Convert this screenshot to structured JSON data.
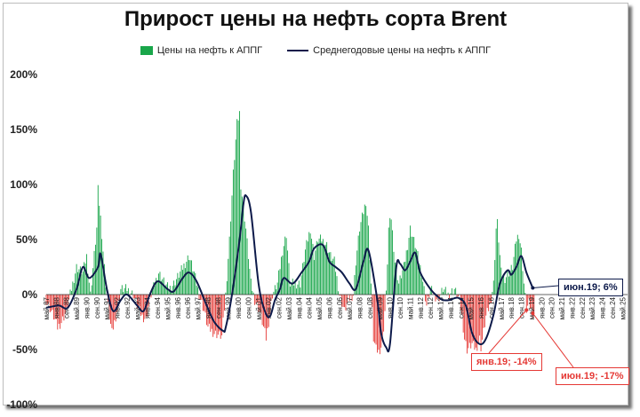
{
  "chart_data": {
    "type": "bar",
    "title": "Прирост цены на нефть сорта Brent",
    "legend": [
      "Цены на нефть к АППГ",
      "Среднегодовые цены на нефть к АППГ"
    ],
    "legend_placement": "top",
    "grid": false,
    "ylim": [
      -100,
      200
    ],
    "yticks": [
      "200%",
      "150%",
      "100%",
      "50%",
      "0%",
      "-50%",
      "-100%"
    ],
    "ytick_values": [
      200,
      150,
      100,
      50,
      0,
      -50,
      -100
    ],
    "xticks": [
      "май.87",
      "янв.88",
      "сен.88",
      "май.89",
      "янв.90",
      "сен.90",
      "май.91",
      "янв.92",
      "сен.92",
      "май.93",
      "янв.94",
      "сен.94",
      "май.95",
      "янв.96",
      "сен.96",
      "май.97",
      "янв.98",
      "сен.98",
      "май.99",
      "янв.00",
      "сен.00",
      "май.01",
      "янв.02",
      "сен.02",
      "май.03",
      "янв.04",
      "сен.04",
      "май.05",
      "янв.06",
      "сен.06",
      "май.07",
      "янв.08",
      "сен.08",
      "май.09",
      "янв.10",
      "сен.10",
      "май.11",
      "янв.12",
      "сен.12",
      "май.13",
      "янв.14",
      "сен.14",
      "май.15",
      "янв.16",
      "сен.16",
      "май.17",
      "янв.18",
      "сен.18",
      "май.19",
      "янв.20",
      "сен.20",
      "май.21",
      "янв.22",
      "сен.22",
      "май.23",
      "янв.24",
      "сен.24",
      "май.25"
    ],
    "x_range": [
      "май.87",
      "сен.25"
    ],
    "series": [
      {
        "name": "Цены на нефть к АППГ",
        "kind": "bar",
        "positive_color": "#19a64a",
        "negative_color": "#e53935",
        "knots": [
          [
            "май.87",
            -5
          ],
          [
            "ноя.87",
            -20
          ],
          [
            "фев.88",
            -30
          ],
          [
            "май.88",
            -25
          ],
          [
            "сен.88",
            -15
          ],
          [
            "янв.89",
            5
          ],
          [
            "май.89",
            25
          ],
          [
            "окт.89",
            20
          ],
          [
            "янв.90",
            35
          ],
          [
            "апр.90",
            0
          ],
          [
            "сен.90",
            60
          ],
          [
            "окт.90",
            95
          ],
          [
            "дек.90",
            70
          ],
          [
            "апр.91",
            10
          ],
          [
            "июл.91",
            -20
          ],
          [
            "сен.91",
            -35
          ],
          [
            "янв.92",
            -15
          ],
          [
            "апр.92",
            5
          ],
          [
            "сен.92",
            5
          ],
          [
            "фев.93",
            0
          ],
          [
            "май.93",
            -10
          ],
          [
            "сен.93",
            -20
          ],
          [
            "дек.93",
            -22
          ],
          [
            "апр.94",
            0
          ],
          [
            "окт.94",
            20
          ],
          [
            "мар.95",
            10
          ],
          [
            "июн.95",
            5
          ],
          [
            "окт.95",
            10
          ],
          [
            "мар.96",
            20
          ],
          [
            "окт.96",
            35
          ],
          [
            "фев.97",
            20
          ],
          [
            "июн.97",
            0
          ],
          [
            "окт.97",
            -15
          ],
          [
            "янв.98",
            -30
          ],
          [
            "июн.98",
            -35
          ],
          [
            "дек.98",
            -38
          ],
          [
            "мар.99",
            0
          ],
          [
            "июн.99",
            50
          ],
          [
            "сен.99",
            110
          ],
          [
            "дек.99",
            155
          ],
          [
            "фев.00",
            165
          ],
          [
            "мар.00",
            100
          ],
          [
            "июл.00",
            60
          ],
          [
            "ноя.00",
            10
          ],
          [
            "фев.01",
            -5
          ],
          [
            "июн.01",
            -15
          ],
          [
            "ноя.01",
            -40
          ],
          [
            "янв.02",
            -25
          ],
          [
            "апр.02",
            0
          ],
          [
            "авг.02",
            10
          ],
          [
            "дек.02",
            40
          ],
          [
            "мар.03",
            55
          ],
          [
            "июн.03",
            10
          ],
          [
            "ноя.03",
            10
          ],
          [
            "фев.04",
            10
          ],
          [
            "июн.04",
            40
          ],
          [
            "окт.04",
            60
          ],
          [
            "янв.05",
            35
          ],
          [
            "апр.05",
            50
          ],
          [
            "июл.05",
            50
          ],
          [
            "ноя.05",
            45
          ],
          [
            "фев.06",
            35
          ],
          [
            "май.06",
            30
          ],
          [
            "сен.06",
            0
          ],
          [
            "янв.07",
            -15
          ],
          [
            "апр.07",
            -5
          ],
          [
            "авг.07",
            0
          ],
          [
            "окт.07",
            30
          ],
          [
            "янв.08",
            60
          ],
          [
            "апр.08",
            75
          ],
          [
            "июн.08",
            85
          ],
          [
            "авг.08",
            60
          ],
          [
            "окт.08",
            10
          ],
          [
            "дек.08",
            -40
          ],
          [
            "фев.09",
            -50
          ],
          [
            "апр.09",
            -52
          ],
          [
            "июл.09",
            -45
          ],
          [
            "окт.09",
            0
          ],
          [
            "дек.09",
            60
          ],
          [
            "фев.10",
            70
          ],
          [
            "май.10",
            30
          ],
          [
            "авг.10",
            10
          ],
          [
            "дек.10",
            25
          ],
          [
            "мар.11",
            45
          ],
          [
            "май.11",
            60
          ],
          [
            "сен.11",
            45
          ],
          [
            "дек.11",
            30
          ],
          [
            "фев.12",
            20
          ],
          [
            "июн.12",
            -10
          ],
          [
            "сен.12",
            5
          ],
          [
            "дек.12",
            0
          ],
          [
            "мар.13",
            -5
          ],
          [
            "июл.13",
            5
          ],
          [
            "ноя.13",
            0
          ],
          [
            "апр.14",
            5
          ],
          [
            "авг.14",
            -5
          ],
          [
            "окт.14",
            -20
          ],
          [
            "дек.14",
            -40
          ],
          [
            "фев.15",
            -50
          ],
          [
            "июн.15",
            -45
          ],
          [
            "сен.15",
            -50
          ],
          [
            "дек.15",
            -40
          ],
          [
            "янв.16",
            -48
          ],
          [
            "май.16",
            -20
          ],
          [
            "авг.16",
            -10
          ],
          [
            "ноя.16",
            10
          ],
          [
            "янв.17",
            60
          ],
          [
            "фев.17",
            65
          ],
          [
            "май.17",
            20
          ],
          [
            "авг.17",
            15
          ],
          [
            "ноя.17",
            20
          ],
          [
            "фев.18",
            25
          ],
          [
            "май.18",
            50
          ],
          [
            "июл.18",
            55
          ],
          [
            "сен.18",
            40
          ],
          [
            "ноя.18",
            10
          ],
          [
            "янв.19",
            -14
          ],
          [
            "мар.19",
            -8
          ],
          [
            "июн.19",
            -17
          ],
          [
            "июл.19",
            -15
          ]
        ]
      },
      {
        "name": "Среднегодовые цены на нефть к АППГ",
        "kind": "line",
        "color": "#0d1a4a",
        "points": [
          [
            "май.87",
            -12
          ],
          [
            "мар.88",
            -10
          ],
          [
            "окт.88",
            -12
          ],
          [
            "май.89",
            5
          ],
          [
            "окт.89",
            25
          ],
          [
            "мар.90",
            15
          ],
          [
            "окт.90",
            25
          ],
          [
            "дек.90",
            37
          ],
          [
            "май.91",
            5
          ],
          [
            "окт.91",
            -15
          ],
          [
            "апр.92",
            -5
          ],
          [
            "сен.92",
            0
          ],
          [
            "май.93",
            -10
          ],
          [
            "окт.93",
            -15
          ],
          [
            "мар.94",
            0
          ],
          [
            "сен.94",
            12
          ],
          [
            "май.95",
            5
          ],
          [
            "окт.95",
            3
          ],
          [
            "май.96",
            15
          ],
          [
            "окт.96",
            20
          ],
          [
            "апр.97",
            12
          ],
          [
            "дек.97",
            -10
          ],
          [
            "июн.98",
            -25
          ],
          [
            "янв.99",
            -33
          ],
          [
            "мар.99",
            -30
          ],
          [
            "авг.99",
            0
          ],
          [
            "фев.00",
            50
          ],
          [
            "май.00",
            82
          ],
          [
            "июл.00",
            90
          ],
          [
            "ноя.00",
            75
          ],
          [
            "май.01",
            10
          ],
          [
            "окт.01",
            -15
          ],
          [
            "фев.02",
            -20
          ],
          [
            "июн.02",
            -5
          ],
          [
            "окт.02",
            5
          ],
          [
            "янв.03",
            15
          ],
          [
            "авг.03",
            10
          ],
          [
            "мар.04",
            20
          ],
          [
            "сен.04",
            30
          ],
          [
            "янв.05",
            42
          ],
          [
            "авг.05",
            45
          ],
          [
            "янв.06",
            30
          ],
          [
            "июн.06",
            25
          ],
          [
            "ноя.06",
            20
          ],
          [
            "май.07",
            10
          ],
          [
            "окт.07",
            5
          ],
          [
            "апр.08",
            30
          ],
          [
            "авг.08",
            40
          ],
          [
            "мар.09",
            -5
          ],
          [
            "июн.09",
            -35
          ],
          [
            "окт.09",
            -48
          ],
          [
            "янв.10",
            -45
          ],
          [
            "июн.10",
            25
          ],
          [
            "сен.10",
            28
          ],
          [
            "янв.11",
            22
          ],
          [
            "май.11",
            30
          ],
          [
            "сен.11",
            38
          ],
          [
            "янв.12",
            20
          ],
          [
            "сен.12",
            5
          ],
          [
            "мар.13",
            -2
          ],
          [
            "июл.13",
            -5
          ],
          [
            "дек.13",
            -5
          ],
          [
            "июл.14",
            -3
          ],
          [
            "янв.15",
            -10
          ],
          [
            "июн.15",
            -35
          ],
          [
            "дек.15",
            -45
          ],
          [
            "май.16",
            -40
          ],
          [
            "ноя.16",
            -18
          ],
          [
            "апр.17",
            10
          ],
          [
            "окт.17",
            22
          ],
          [
            "янв.18",
            18
          ],
          [
            "май.18",
            25
          ],
          [
            "сен.18",
            35
          ],
          [
            "янв.19",
            20
          ],
          [
            "июн.19",
            6
          ]
        ]
      }
    ],
    "annotations": [
      {
        "label": "июн.19; 6%",
        "x": "июн.19",
        "y": 6,
        "series": "Среднегодовые цены на нефть к АППГ"
      },
      {
        "label": "янв.19; -14%",
        "x": "янв.19",
        "y": -14,
        "series": "Цены на нефть к АППГ"
      },
      {
        "label": "июн.19; -17%",
        "x": "июн.19",
        "y": -17,
        "series": "Цены на нефть к АППГ"
      }
    ]
  }
}
